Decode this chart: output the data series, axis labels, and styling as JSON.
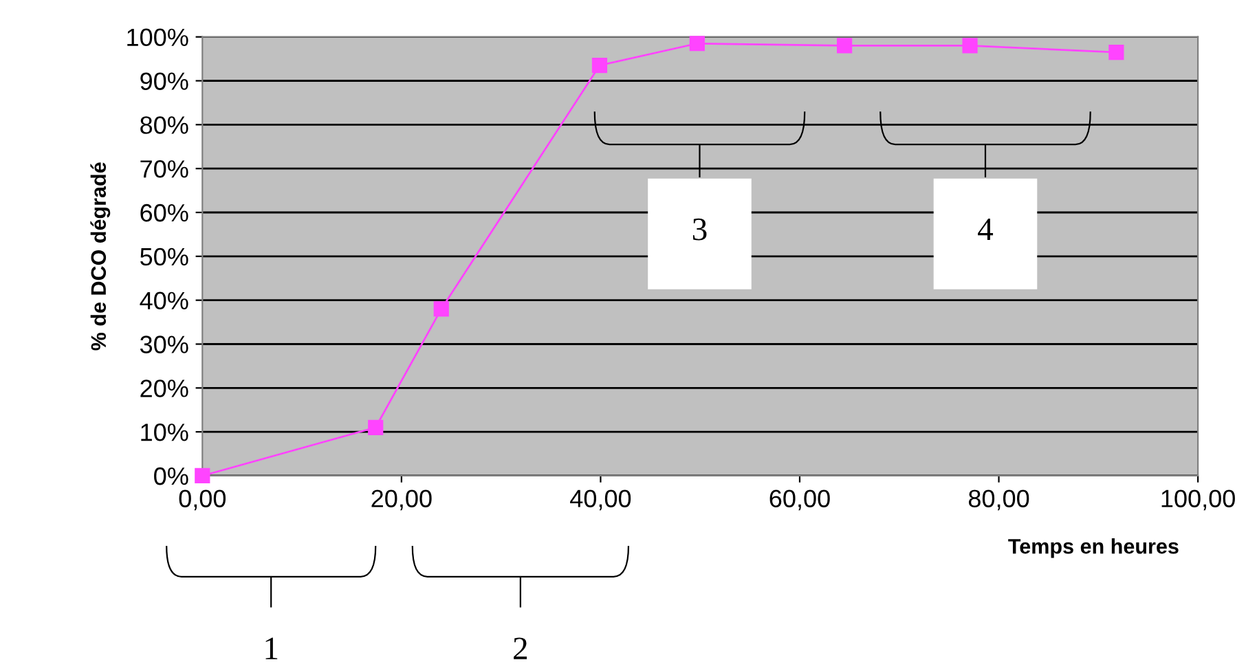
{
  "chart_data": {
    "type": "line",
    "xlabel": "Temps en heures",
    "ylabel": "% de DCO dégradé",
    "x": [
      0,
      17.4,
      24.0,
      39.9,
      49.7,
      64.5,
      77.1,
      91.8
    ],
    "series": [
      {
        "color": "#ff44ff",
        "values": [
          0,
          11,
          38,
          93.5,
          98.5,
          98,
          98,
          96.5
        ]
      }
    ],
    "xlim": [
      0,
      100
    ],
    "xticks": [
      {
        "value": 0,
        "label": "0,00"
      },
      {
        "value": 20,
        "label": "20,00"
      },
      {
        "value": 40,
        "label": "40,00"
      },
      {
        "value": 60,
        "label": "60,00"
      },
      {
        "value": 80,
        "label": "80,00"
      },
      {
        "value": 100,
        "label": "100,00"
      }
    ],
    "ylim": [
      0,
      100
    ],
    "yticks": [
      {
        "value": 0,
        "label": "0%"
      },
      {
        "value": 10,
        "label": "10%"
      },
      {
        "value": 20,
        "label": "20%"
      },
      {
        "value": 30,
        "label": "30%"
      },
      {
        "value": 40,
        "label": "40%"
      },
      {
        "value": 50,
        "label": "50%"
      },
      {
        "value": 60,
        "label": "60%"
      },
      {
        "value": 70,
        "label": "70%"
      },
      {
        "value": 80,
        "label": "80%"
      },
      {
        "value": 90,
        "label": "90%"
      },
      {
        "value": 100,
        "label": "100%"
      }
    ],
    "grid": "y",
    "marker": "square",
    "line_style": "solid",
    "legend": false,
    "annotations": [
      "1",
      "2",
      "3",
      "4"
    ]
  }
}
